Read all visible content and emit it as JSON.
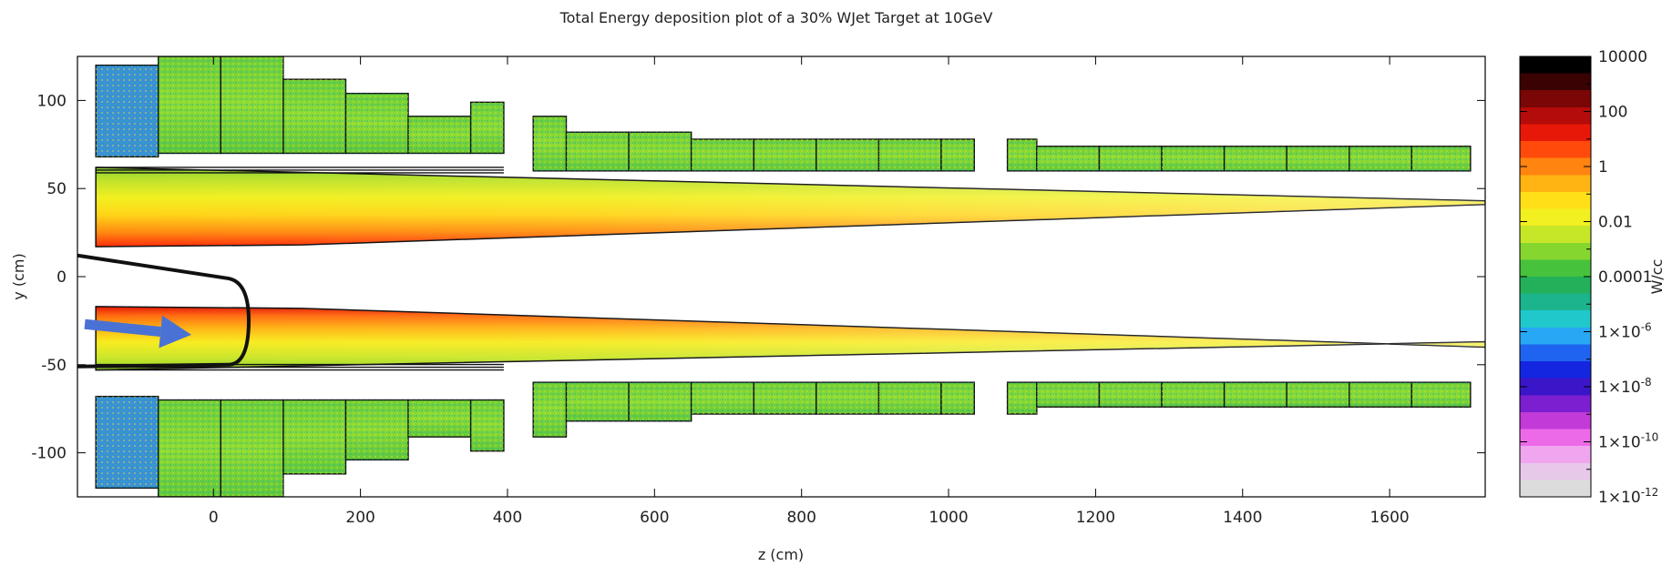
{
  "chart_data": {
    "type": "heatmap",
    "title": "Total Energy deposition plot of a 30% WJet Target at 10GeV",
    "xlabel": "z (cm)",
    "ylabel": "y (cm)",
    "xlim": [
      -185,
      1730
    ],
    "ylim": [
      -125,
      125
    ],
    "x_ticks": [
      {
        "value": 0,
        "label": "0"
      },
      {
        "value": 200,
        "label": "200"
      },
      {
        "value": 400,
        "label": "400"
      },
      {
        "value": 600,
        "label": "600"
      },
      {
        "value": 800,
        "label": "800"
      },
      {
        "value": 1000,
        "label": "1000"
      },
      {
        "value": 1200,
        "label": "1200"
      },
      {
        "value": 1400,
        "label": "1400"
      },
      {
        "value": 1600,
        "label": "1600"
      }
    ],
    "y_ticks": [
      {
        "value": 100,
        "label": "100"
      },
      {
        "value": 50,
        "label": "50"
      },
      {
        "value": 0,
        "label": "0"
      },
      {
        "value": -50,
        "label": "-50"
      },
      {
        "value": -100,
        "label": "-100"
      }
    ],
    "colorbar": {
      "label": "W/cc",
      "scale": "log",
      "range": [
        1e-12,
        10000
      ],
      "ticks": [
        {
          "exp": 4,
          "label": "10000"
        },
        {
          "exp": 2,
          "label": "100"
        },
        {
          "exp": 0,
          "label": "1"
        },
        {
          "exp": -2,
          "label": "0.01"
        },
        {
          "exp": -4,
          "label": "0.0001"
        },
        {
          "exp": -6,
          "label": "1×10",
          "sup": "-6"
        },
        {
          "exp": -8,
          "label": "1×10",
          "sup": "-8"
        },
        {
          "exp": -10,
          "label": "1×10",
          "sup": "-10"
        },
        {
          "exp": -12,
          "label": "1×10",
          "sup": "-12"
        }
      ],
      "colors": [
        "#dcdcdc",
        "#e8c8ea",
        "#f0a6ee",
        "#ec6ae8",
        "#c23ad8",
        "#7c1fd0",
        "#3a16c8",
        "#1426e0",
        "#1e64f0",
        "#28a8f4",
        "#20c8cc",
        "#1cb48c",
        "#24b05a",
        "#46c23c",
        "#86d630",
        "#c6e628",
        "#f2f020",
        "#ffe018",
        "#ffb414",
        "#ff8410",
        "#ff4a0c",
        "#e81808",
        "#b40c0a",
        "#7a0606",
        "#3a0202",
        "#000000"
      ]
    },
    "annotations": [
      {
        "type": "beam-arrow",
        "from": [
          -175,
          -27
        ],
        "to": [
          -30,
          -33
        ],
        "color": "#4a72d4"
      }
    ],
    "regions": [
      {
        "name": "upper-beam-pipe-deposition",
        "kind": "gradient-cone",
        "z_range": [
          -160,
          1730
        ],
        "y_outer": 62,
        "y_inner_start": 17,
        "y_inner_end": 41,
        "peak_level": "1"
      },
      {
        "name": "lower-beam-pipe-deposition",
        "kind": "gradient-cone",
        "z_range": [
          -160,
          1730
        ],
        "y_outer": -53,
        "y_inner_start": -17,
        "y_inner_end": -40,
        "peak_level": "100"
      },
      {
        "name": "upper-shield-blocks",
        "kind": "blocks",
        "level": "0.001",
        "blocks": [
          [
            -160,
            -75,
            68,
            120
          ],
          [
            -75,
            10,
            70,
            125
          ],
          [
            10,
            95,
            70,
            125
          ],
          [
            95,
            180,
            70,
            112
          ],
          [
            180,
            265,
            70,
            104
          ],
          [
            265,
            350,
            70,
            91
          ],
          [
            350,
            395,
            70,
            99
          ],
          [
            435,
            480,
            60,
            91
          ],
          [
            480,
            565,
            60,
            82
          ],
          [
            565,
            650,
            60,
            82
          ],
          [
            650,
            735,
            60,
            78
          ],
          [
            735,
            820,
            60,
            78
          ],
          [
            820,
            905,
            60,
            78
          ],
          [
            905,
            990,
            60,
            78
          ],
          [
            990,
            1035,
            60,
            78
          ],
          [
            1080,
            1120,
            60,
            78
          ],
          [
            1120,
            1205,
            60,
            74
          ],
          [
            1205,
            1290,
            60,
            74
          ],
          [
            1290,
            1375,
            60,
            74
          ],
          [
            1375,
            1460,
            60,
            74
          ],
          [
            1460,
            1545,
            60,
            74
          ],
          [
            1545,
            1630,
            60,
            74
          ],
          [
            1630,
            1710,
            60,
            74
          ]
        ]
      },
      {
        "name": "lower-shield-blocks",
        "kind": "blocks",
        "level": "0.001",
        "blocks": [
          [
            -160,
            -75,
            -68,
            -120
          ],
          [
            -75,
            10,
            -70,
            -125
          ],
          [
            10,
            95,
            -70,
            -125
          ],
          [
            95,
            180,
            -70,
            -112
          ],
          [
            180,
            265,
            -70,
            -104
          ],
          [
            265,
            350,
            -70,
            -91
          ],
          [
            350,
            395,
            -70,
            -99
          ],
          [
            435,
            480,
            -60,
            -91
          ],
          [
            480,
            565,
            -60,
            -82
          ],
          [
            565,
            650,
            -60,
            -82
          ],
          [
            650,
            735,
            -60,
            -78
          ],
          [
            735,
            820,
            -60,
            -78
          ],
          [
            820,
            905,
            -60,
            -78
          ],
          [
            905,
            990,
            -60,
            -78
          ],
          [
            990,
            1035,
            -60,
            -78
          ],
          [
            1080,
            1120,
            -60,
            -78
          ],
          [
            1120,
            1205,
            -60,
            -74
          ],
          [
            1205,
            1290,
            -60,
            -74
          ],
          [
            1290,
            1375,
            -60,
            -74
          ],
          [
            1375,
            1460,
            -60,
            -74
          ],
          [
            1460,
            1545,
            -60,
            -74
          ],
          [
            1545,
            1630,
            -60,
            -74
          ],
          [
            1630,
            1710,
            -60,
            -74
          ]
        ]
      }
    ]
  }
}
